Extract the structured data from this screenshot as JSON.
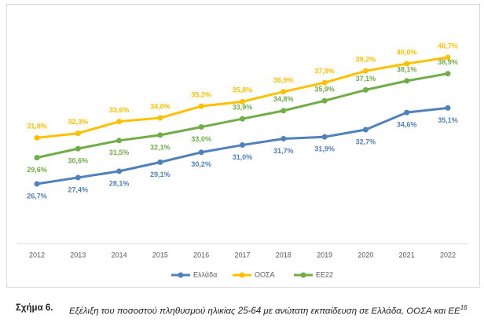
{
  "chart_data": {
    "type": "line",
    "categories": [
      "2012",
      "2013",
      "2014",
      "2015",
      "2016",
      "2017",
      "2018",
      "2019",
      "2020",
      "2021",
      "2022"
    ],
    "series": [
      {
        "name": "Ελλάδα",
        "color": "#4f81bd",
        "values": [
          26.7,
          27.4,
          28.1,
          29.1,
          30.2,
          31.0,
          31.7,
          31.9,
          32.7,
          34.6,
          35.1
        ],
        "value_labels": [
          "26,7%",
          "27,4%",
          "28,1%",
          "29,1%",
          "30,2%",
          "31,0%",
          "31,7%",
          "31,9%",
          "32,7%",
          "34,6%",
          "35,1%"
        ]
      },
      {
        "name": "ΟΟΣΑ",
        "color": "#ffc000",
        "values": [
          31.8,
          32.3,
          33.6,
          34.0,
          35.3,
          35.8,
          36.9,
          37.9,
          39.2,
          40.0,
          40.7
        ],
        "value_labels": [
          "31,8%",
          "32,3%",
          "33,6%",
          "34,0%",
          "35,3%",
          "35,8%",
          "36,9%",
          "37,9%",
          "39,2%",
          "40,0%",
          "40,7%"
        ]
      },
      {
        "name": "ΕΕ22",
        "color": "#70ad47",
        "values": [
          29.6,
          30.6,
          31.5,
          32.1,
          33.0,
          33.9,
          34.8,
          35.9,
          37.1,
          38.1,
          38.9
        ],
        "value_labels": [
          "29,6%",
          "30,6%",
          "31,5%",
          "32,1%",
          "33,0%",
          "33,9%",
          "34,8%",
          "35,9%",
          "37,1%",
          "38,1%",
          "38,9%"
        ]
      }
    ],
    "legend": "bottom"
  },
  "caption": {
    "label": "Σχήμα 6.",
    "text": "Εξέλιξη του ποσοστού πληθυσμού ηλικίας 25-64 με ανώτατη εκπαίδευση σε Ελλάδα, ΟΟΣΑ και ΕΕ",
    "footnote": "16"
  }
}
